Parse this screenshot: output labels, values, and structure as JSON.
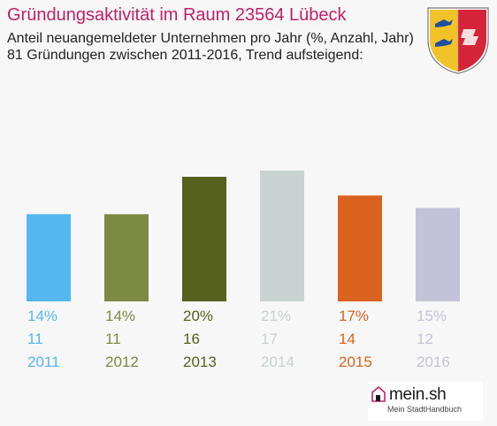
{
  "header": {
    "title": "Gründungsaktivität im Raum 23564 Lübeck",
    "subtitle_line1": "Anteil neuangemeldeter Unternehmen pro Jahr (%, Anzahl, Jahr)",
    "subtitle_line2": "81 Gründungen zwischen 2011-2016, Trend aufsteigend:"
  },
  "crest": {
    "icon": "schleswig-holstein-coat-of-arms"
  },
  "logo": {
    "name": "mein.sh",
    "tagline": "Mein StadtHandbuch",
    "icon": "house-icon"
  },
  "chart_data": {
    "type": "bar",
    "categories": [
      "2011",
      "2012",
      "2013",
      "2014",
      "2015",
      "2016"
    ],
    "values": [
      14,
      14,
      20,
      21,
      17,
      15
    ],
    "percent_labels": [
      "14%",
      "14%",
      "20%",
      "21%",
      "17%",
      "15%"
    ],
    "counts": [
      11,
      11,
      16,
      17,
      14,
      12
    ],
    "colors": [
      "#55b7ef",
      "#7c8a44",
      "#56601f",
      "#c8d2d0",
      "#d9621f",
      "#c4c2d8"
    ],
    "ylim": [
      0,
      21
    ],
    "grid": false,
    "legend": "none"
  }
}
